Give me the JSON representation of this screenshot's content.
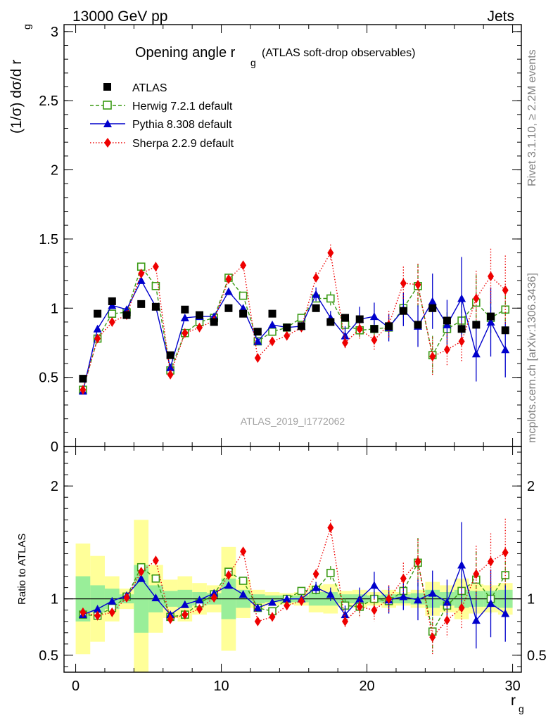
{
  "header": {
    "left": "13000 GeV pp",
    "right": "Jets"
  },
  "side_labels": {
    "rivet": "Rivet 3.1.10, ≥ 2.2M events",
    "mcplots": "mcplots.cern.ch [arXiv:1306.3436]"
  },
  "top_panel": {
    "title_main": "Opening angle r",
    "title_sub": "g",
    "title_suffix": "(ATLAS soft-drop observables)",
    "ylabel_main": "(1/σ) dσ/d r",
    "ylabel_sub": "g",
    "analysis_id": "ATLAS_2019_I1772062"
  },
  "bottom_panel": {
    "ylabel": "Ratio to ATLAS"
  },
  "xlabel_main": "r",
  "xlabel_sub": "g",
  "colors": {
    "atlas": "#000000",
    "herwig": "#3a9a14",
    "pythia": "#0000cc",
    "sherpa": "#ee0000",
    "band_yellow": "#ffff99",
    "band_green": "#99ee99",
    "analysis_id": "#a0a0a0",
    "side_text": "#808080"
  },
  "chart_data": [
    {
      "type": "scatter",
      "panel": "main",
      "xlim": [
        -0.8,
        30.6
      ],
      "ylim": [
        0,
        3.05
      ],
      "x_ticks": [
        0,
        10,
        20,
        30
      ],
      "y_ticks": [
        0,
        0.5,
        1,
        1.5,
        2,
        2.5,
        3
      ],
      "x_tick_labels": [
        "0",
        "10",
        "20",
        "30"
      ],
      "y_tick_labels": [
        "0",
        "0.5",
        "1",
        "1.5",
        "2",
        "2.5",
        "3"
      ],
      "x": [
        0.5,
        1.5,
        2.5,
        3.5,
        4.5,
        5.5,
        6.5,
        7.5,
        8.5,
        9.5,
        10.5,
        11.5,
        12.5,
        13.5,
        14.5,
        15.5,
        16.5,
        17.5,
        18.5,
        19.5,
        20.5,
        21.5,
        22.5,
        23.5,
        24.5,
        25.5,
        26.5,
        27.5,
        28.5,
        29.5
      ],
      "series": [
        {
          "name": "ATLAS",
          "marker": "square",
          "values": [
            0.49,
            0.96,
            1.05,
            0.95,
            1.03,
            1.01,
            0.66,
            0.99,
            0.95,
            0.9,
            1.0,
            0.96,
            0.83,
            0.96,
            0.86,
            0.87,
            1.0,
            0.9,
            0.93,
            0.92,
            0.85,
            0.87,
            0.98,
            0.88,
            1.0,
            0.91,
            0.85,
            0.88,
            0.94,
            0.84
          ]
        },
        {
          "name": "Herwig 7.2.1 default",
          "marker": "open-square",
          "values": [
            0.41,
            0.78,
            0.96,
            0.97,
            1.3,
            1.16,
            0.55,
            0.82,
            0.9,
            0.93,
            1.22,
            1.09,
            0.76,
            0.83,
            0.86,
            0.93,
            1.07,
            1.07,
            0.88,
            0.84,
            0.85,
            0.86,
            1.0,
            1.16,
            0.66,
            0.85,
            0.91,
            1.04,
            0.93,
            0.99
          ],
          "errors": [
            0,
            0,
            0,
            0,
            0,
            0,
            0,
            0,
            0,
            0,
            0,
            0,
            0,
            0,
            0,
            0,
            0.04,
            0.05,
            0.05,
            0.06,
            0.06,
            0.07,
            0.08,
            0.16,
            0.14,
            0.12,
            0.12,
            0.2,
            0.12,
            0.1
          ]
        },
        {
          "name": "Pythia 8.308 default",
          "marker": "triangle",
          "values": [
            0.4,
            0.85,
            1.02,
            0.99,
            1.2,
            1.01,
            0.57,
            0.93,
            0.94,
            0.94,
            1.12,
            1.0,
            0.76,
            0.88,
            0.86,
            0.87,
            1.1,
            0.93,
            0.8,
            0.92,
            0.94,
            0.86,
            0.99,
            0.87,
            1.05,
            0.88,
            1.07,
            0.67,
            0.9,
            0.7
          ],
          "errors": [
            0,
            0,
            0,
            0,
            0,
            0,
            0,
            0,
            0,
            0,
            0,
            0,
            0,
            0,
            0,
            0,
            0.05,
            0.05,
            0.07,
            0.09,
            0.1,
            0.1,
            0.12,
            0.15,
            0.2,
            0.18,
            0.3,
            0.2,
            0.25,
            0.2
          ]
        },
        {
          "name": "Sherpa 2.2.9 default",
          "marker": "diamond",
          "values": [
            0.41,
            0.78,
            0.9,
            0.95,
            1.25,
            1.3,
            0.52,
            0.82,
            0.86,
            0.91,
            1.21,
            1.31,
            0.64,
            0.76,
            0.8,
            0.86,
            1.22,
            1.4,
            0.75,
            0.85,
            0.77,
            0.88,
            1.18,
            1.17,
            0.65,
            0.7,
            0.76,
            1.07,
            1.23,
            1.13
          ],
          "errors": [
            0,
            0,
            0,
            0,
            0,
            0,
            0,
            0,
            0,
            0,
            0,
            0,
            0,
            0,
            0,
            0,
            0.04,
            0.06,
            0.05,
            0.08,
            0.08,
            0.1,
            0.12,
            0.15,
            0.14,
            0.12,
            0.15,
            0.2,
            0.2,
            0.25
          ]
        }
      ]
    },
    {
      "type": "scatter",
      "panel": "ratio",
      "xlim": [
        -0.8,
        30.6
      ],
      "ylim": [
        0.35,
        2.35
      ],
      "x_ticks": [
        0,
        10,
        20,
        30
      ],
      "y_ticks": [
        0.5,
        1,
        2
      ],
      "x_tick_labels": [
        "0",
        "10",
        "20",
        "30"
      ],
      "y_tick_labels": [
        "0.5",
        "1",
        "2"
      ],
      "x": [
        0.5,
        1.5,
        2.5,
        3.5,
        4.5,
        5.5,
        6.5,
        7.5,
        8.5,
        9.5,
        10.5,
        11.5,
        12.5,
        13.5,
        14.5,
        15.5,
        16.5,
        17.5,
        18.5,
        19.5,
        20.5,
        21.5,
        22.5,
        23.5,
        24.5,
        25.5,
        26.5,
        27.5,
        28.5,
        29.5
      ],
      "band_yellow": [
        0.49,
        0.38,
        0.2,
        0.09,
        0.7,
        0.3,
        0.17,
        0.2,
        0.14,
        0.12,
        0.46,
        0.17,
        0.08,
        0.06,
        0.05,
        0.06,
        0.12,
        0.13,
        0.07,
        0.08,
        0.06,
        0.08,
        0.06,
        0.08,
        0.15,
        0.12,
        0.18,
        0.13,
        0.12,
        0.14
      ],
      "band_green": [
        0.2,
        0.12,
        0.09,
        0.04,
        0.3,
        0.12,
        0.07,
        0.08,
        0.06,
        0.05,
        0.18,
        0.08,
        0.04,
        0.03,
        0.03,
        0.03,
        0.06,
        0.06,
        0.04,
        0.04,
        0.03,
        0.04,
        0.04,
        0.05,
        0.08,
        0.06,
        0.08,
        0.07,
        0.07,
        0.08
      ],
      "series": [
        {
          "name": "Herwig 7.2.1 default",
          "values": [
            0.86,
            0.85,
            0.92,
            1.02,
            1.28,
            1.18,
            0.84,
            0.86,
            0.96,
            1.04,
            1.24,
            1.16,
            0.92,
            0.89,
            1.0,
            1.07,
            1.08,
            1.23,
            0.94,
            0.93,
            1.0,
            0.98,
            1.07,
            1.32,
            0.71,
            0.94,
            1.07,
            1.17,
            1.0,
            1.21
          ],
          "errors": [
            0,
            0,
            0,
            0,
            0,
            0,
            0,
            0,
            0,
            0,
            0,
            0,
            0,
            0,
            0,
            0,
            0.04,
            0.06,
            0.06,
            0.08,
            0.07,
            0.08,
            0.1,
            0.22,
            0.18,
            0.14,
            0.15,
            0.25,
            0.15,
            0.12
          ]
        },
        {
          "name": "Pythia 8.308 default",
          "values": [
            0.86,
            0.91,
            0.98,
            1.03,
            1.18,
            1.01,
            0.86,
            0.95,
            0.99,
            1.05,
            1.12,
            1.04,
            0.92,
            0.97,
            1.0,
            1.0,
            1.1,
            1.04,
            0.86,
            1.0,
            1.12,
            0.99,
            1.02,
            0.99,
            1.05,
            0.97,
            1.3,
            0.81,
            0.96,
            0.87
          ],
          "errors": [
            0,
            0,
            0,
            0,
            0,
            0,
            0,
            0,
            0,
            0,
            0,
            0,
            0,
            0,
            0,
            0,
            0.05,
            0.06,
            0.08,
            0.1,
            0.12,
            0.12,
            0.12,
            0.18,
            0.2,
            0.2,
            0.38,
            0.25,
            0.3,
            0.25
          ]
        },
        {
          "name": "Sherpa 2.2.9 default",
          "values": [
            0.88,
            0.85,
            0.88,
            1.01,
            1.24,
            1.34,
            0.82,
            0.86,
            0.91,
            1.01,
            1.21,
            1.42,
            0.8,
            0.84,
            0.94,
            0.98,
            1.22,
            1.63,
            0.8,
            0.93,
            0.9,
            1.0,
            1.18,
            1.33,
            0.66,
            0.81,
            0.92,
            1.22,
            1.33,
            1.41
          ],
          "errors": [
            0,
            0,
            0,
            0,
            0,
            0,
            0,
            0,
            0,
            0,
            0,
            0,
            0,
            0,
            0,
            0,
            0.04,
            0.07,
            0.06,
            0.1,
            0.1,
            0.12,
            0.14,
            0.2,
            0.16,
            0.15,
            0.18,
            0.25,
            0.25,
            0.3
          ]
        }
      ]
    }
  ]
}
